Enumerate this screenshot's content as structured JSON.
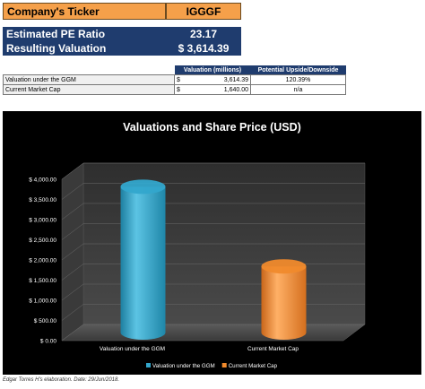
{
  "ticker": {
    "label": "Company's Ticker",
    "value": "IGGGF"
  },
  "pe": {
    "label": "Estimated PE Ratio",
    "value": "23.17"
  },
  "valuation": {
    "label": "Resulting Valuation",
    "currency": "$",
    "value": "3,614.39"
  },
  "table": {
    "headers": [
      "Valuation (millions)",
      "Potential Upside/Downside"
    ],
    "rows": [
      {
        "name": "Valuation under the GGM",
        "currency": "$",
        "value": "3,614.39",
        "upside": "120.39%"
      },
      {
        "name": "Current Market Cap",
        "currency": "$",
        "value": "1,640.00",
        "upside": "n/a"
      }
    ]
  },
  "chart_data": {
    "type": "bar",
    "title": "Valuations and Share Price (USD)",
    "categories": [
      "Valuation under the GGM",
      "Current Market Cap"
    ],
    "series": [
      {
        "name": "Valuation under the GGM",
        "values": [
          3614.39,
          null
        ],
        "color": "#33a6cc"
      },
      {
        "name": "Current Market Cap",
        "values": [
          null,
          1640.0
        ],
        "color": "#f08a2c"
      }
    ],
    "ylim": [
      0,
      4000
    ],
    "yticks": [
      "$ 0.00",
      "$ 500.00",
      "$ 1,000.00",
      "$ 1,500.00",
      "$ 2,000.00",
      "$ 2,500.00",
      "$ 3,000.00",
      "$ 3,500.00",
      "$ 4,000.00"
    ],
    "grid": true,
    "legend": "bottom",
    "background": "#000000",
    "wall_color": "#3a3a3a"
  },
  "footnote": "Edgar Torres H's elaboration. Date: 29/Jun/2018."
}
